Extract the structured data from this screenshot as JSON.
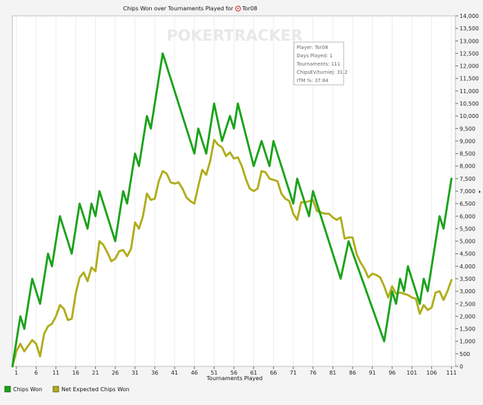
{
  "chart_data": {
    "type": "line",
    "title": "Chips Won over Tournaments Played for",
    "player_name": "Tor08",
    "xlabel": "Tournaments Played",
    "ylabel": "",
    "xlim": [
      0,
      112
    ],
    "ylim": [
      0,
      14000
    ],
    "x_ticks": [
      1,
      6,
      11,
      16,
      21,
      26,
      31,
      36,
      41,
      46,
      51,
      56,
      61,
      66,
      71,
      76,
      81,
      86,
      91,
      96,
      101,
      106,
      111
    ],
    "y_ticks": [
      0,
      500,
      1000,
      1500,
      2000,
      2500,
      3000,
      3500,
      4000,
      4500,
      5000,
      5500,
      6000,
      6500,
      7000,
      7500,
      8000,
      8500,
      9000,
      9500,
      10000,
      10500,
      11000,
      11500,
      12000,
      12500,
      13000,
      13500,
      14000
    ],
    "y_tick_labels": [
      "0",
      "500",
      "1,000",
      "1,500",
      "2,000",
      "2,500",
      "3,000",
      "3,500",
      "4,000",
      "4,500",
      "5,000",
      "5,500",
      "6,000",
      "6,500",
      "7,000",
      "7,500",
      "8,000",
      "8,500",
      "9,000",
      "9,500",
      "10,000",
      "10,500",
      "11,000",
      "11,500",
      "12,000",
      "12,500",
      "13,000",
      "13,500",
      "14,000"
    ],
    "grid": "vertical",
    "legend_position": "bottom-left",
    "watermark": "POKERTRACKER",
    "series": [
      {
        "name": "Chips Won",
        "color": "#1aa31a",
        "points": [
          [
            0,
            0
          ],
          [
            2,
            2000
          ],
          [
            3,
            1500
          ],
          [
            5,
            3500
          ],
          [
            7,
            2500
          ],
          [
            9,
            4500
          ],
          [
            10,
            4000
          ],
          [
            12,
            6000
          ],
          [
            14,
            5000
          ],
          [
            15,
            4500
          ],
          [
            17,
            6500
          ],
          [
            19,
            5500
          ],
          [
            20,
            6500
          ],
          [
            21,
            6000
          ],
          [
            22,
            7000
          ],
          [
            26,
            5000
          ],
          [
            28,
            7000
          ],
          [
            29,
            6500
          ],
          [
            31,
            8500
          ],
          [
            32,
            8000
          ],
          [
            34,
            10000
          ],
          [
            35,
            9500
          ],
          [
            38,
            12500
          ],
          [
            46,
            8500
          ],
          [
            47,
            9500
          ],
          [
            49,
            8500
          ],
          [
            51,
            10500
          ],
          [
            53,
            9000
          ],
          [
            55,
            10000
          ],
          [
            56,
            9500
          ],
          [
            57,
            10500
          ],
          [
            61,
            8000
          ],
          [
            63,
            9000
          ],
          [
            65,
            8000
          ],
          [
            66,
            9000
          ],
          [
            71,
            6500
          ],
          [
            72,
            7500
          ],
          [
            75,
            6000
          ],
          [
            76,
            7000
          ],
          [
            83,
            3500
          ],
          [
            85,
            5000
          ],
          [
            94,
            1000
          ],
          [
            96,
            3000
          ],
          [
            97,
            2500
          ],
          [
            98,
            3500
          ],
          [
            99,
            3000
          ],
          [
            100,
            4000
          ],
          [
            103,
            2500
          ],
          [
            104,
            3500
          ],
          [
            105,
            3000
          ],
          [
            108,
            6000
          ],
          [
            109,
            5500
          ],
          [
            111,
            7500
          ]
        ]
      },
      {
        "name": "Net Expected Chips Won",
        "color": "#b0ad1c",
        "points": [
          [
            0,
            0
          ],
          [
            1,
            600
          ],
          [
            2,
            900
          ],
          [
            3,
            600
          ],
          [
            5,
            1050
          ],
          [
            6,
            900
          ],
          [
            7,
            400
          ],
          [
            8,
            1300
          ],
          [
            9,
            1600
          ],
          [
            10,
            1700
          ],
          [
            11,
            2000
          ],
          [
            12,
            2450
          ],
          [
            13,
            2300
          ],
          [
            14,
            1850
          ],
          [
            15,
            1900
          ],
          [
            16,
            2900
          ],
          [
            17,
            3550
          ],
          [
            18,
            3750
          ],
          [
            19,
            3400
          ],
          [
            20,
            3950
          ],
          [
            21,
            3800
          ],
          [
            22,
            5000
          ],
          [
            23,
            4850
          ],
          [
            24,
            4550
          ],
          [
            25,
            4200
          ],
          [
            26,
            4300
          ],
          [
            27,
            4600
          ],
          [
            28,
            4650
          ],
          [
            29,
            4400
          ],
          [
            30,
            4700
          ],
          [
            31,
            5750
          ],
          [
            32,
            5500
          ],
          [
            33,
            6000
          ],
          [
            34,
            6900
          ],
          [
            35,
            6650
          ],
          [
            36,
            6700
          ],
          [
            37,
            7400
          ],
          [
            38,
            7800
          ],
          [
            39,
            7700
          ],
          [
            40,
            7350
          ],
          [
            41,
            7300
          ],
          [
            42,
            7350
          ],
          [
            43,
            7100
          ],
          [
            44,
            6750
          ],
          [
            45,
            6600
          ],
          [
            46,
            6500
          ],
          [
            47,
            7200
          ],
          [
            48,
            7850
          ],
          [
            49,
            7650
          ],
          [
            50,
            8200
          ],
          [
            51,
            9050
          ],
          [
            52,
            8850
          ],
          [
            53,
            8750
          ],
          [
            54,
            8400
          ],
          [
            55,
            8550
          ],
          [
            56,
            8300
          ],
          [
            57,
            8350
          ],
          [
            58,
            8000
          ],
          [
            59,
            7500
          ],
          [
            60,
            7100
          ],
          [
            61,
            7000
          ],
          [
            62,
            7100
          ],
          [
            63,
            7800
          ],
          [
            64,
            7750
          ],
          [
            65,
            7500
          ],
          [
            66,
            7450
          ],
          [
            67,
            7400
          ],
          [
            68,
            6900
          ],
          [
            69,
            6700
          ],
          [
            70,
            6600
          ],
          [
            71,
            6100
          ],
          [
            72,
            5850
          ],
          [
            73,
            6550
          ],
          [
            74,
            6550
          ],
          [
            75,
            6600
          ],
          [
            76,
            6650
          ],
          [
            77,
            6200
          ],
          [
            78,
            6150
          ],
          [
            79,
            6100
          ],
          [
            80,
            6100
          ],
          [
            81,
            5950
          ],
          [
            82,
            5850
          ],
          [
            83,
            5950
          ],
          [
            84,
            5100
          ],
          [
            85,
            5150
          ],
          [
            86,
            5150
          ],
          [
            87,
            4500
          ],
          [
            88,
            4150
          ],
          [
            89,
            3900
          ],
          [
            90,
            3550
          ],
          [
            91,
            3700
          ],
          [
            92,
            3650
          ],
          [
            93,
            3550
          ],
          [
            94,
            3200
          ],
          [
            95,
            2750
          ],
          [
            96,
            3200
          ],
          [
            97,
            2900
          ],
          [
            98,
            2950
          ],
          [
            99,
            2900
          ],
          [
            100,
            2850
          ],
          [
            101,
            2750
          ],
          [
            102,
            2700
          ],
          [
            103,
            2100
          ],
          [
            104,
            2450
          ],
          [
            105,
            2250
          ],
          [
            106,
            2350
          ],
          [
            107,
            2950
          ],
          [
            108,
            3000
          ],
          [
            109,
            2650
          ],
          [
            110,
            3000
          ],
          [
            111,
            3450
          ]
        ]
      }
    ]
  },
  "info_box": {
    "player": "Player: Tor08",
    "days": "Days Played: 1",
    "tournaments": "Tournaments: 111",
    "chipsev": "ChipsEV/turniej: 31.2",
    "itm": "ITM %: 37.84"
  }
}
